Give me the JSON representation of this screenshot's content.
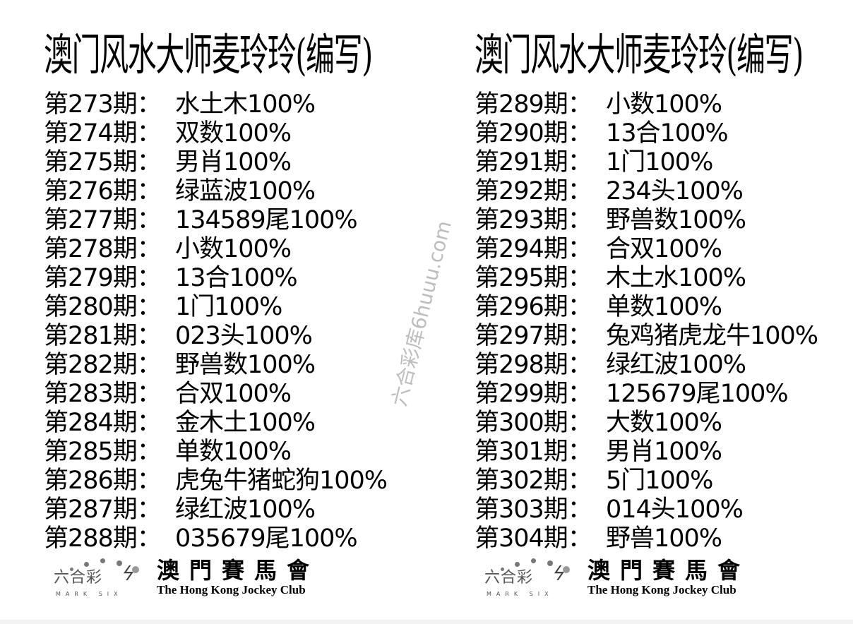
{
  "watermark": "六合彩库6huuu.com",
  "columns": [
    {
      "title": "澳门风水大师麦玲玲(编写)",
      "rows": [
        {
          "label": "第273期：",
          "value": "水土木100%"
        },
        {
          "label": "第274期：",
          "value": "双数100%"
        },
        {
          "label": "第275期：",
          "value": "男肖100%"
        },
        {
          "label": "第276期：",
          "value": "绿蓝波100%"
        },
        {
          "label": "第277期：",
          "value": "134589尾100%"
        },
        {
          "label": "第278期：",
          "value": "小数100%"
        },
        {
          "label": "第279期：",
          "value": "13合100%"
        },
        {
          "label": "第280期：",
          "value": "1门100%"
        },
        {
          "label": "第281期：",
          "value": "023头100%"
        },
        {
          "label": "第282期：",
          "value": "野兽数100%"
        },
        {
          "label": "第283期：",
          "value": "合双100%"
        },
        {
          "label": "第284期：",
          "value": "金木土100%"
        },
        {
          "label": "第285期：",
          "value": "单数100%"
        },
        {
          "label": "第286期：",
          "value": "虎兔牛猪蛇狗100%"
        },
        {
          "label": "第287期：",
          "value": "绿红波100%"
        },
        {
          "label": "第288期：",
          "value": "035679尾100%"
        }
      ],
      "logo": {
        "mark_cn": "六合彩",
        "mark_en": "MARK SIX",
        "club_cn": "澳門賽馬會",
        "club_en": "The Hong Kong Jockey Club"
      }
    },
    {
      "title": "澳门风水大师麦玲玲(编写)",
      "rows": [
        {
          "label": "第289期：",
          "value": "小数100%"
        },
        {
          "label": "第290期：",
          "value": "13合100%"
        },
        {
          "label": "第291期：",
          "value": "1门100%"
        },
        {
          "label": "第292期：",
          "value": "234头100%"
        },
        {
          "label": "第293期：",
          "value": "野兽数100%"
        },
        {
          "label": "第294期：",
          "value": "合双100%"
        },
        {
          "label": "第295期：",
          "value": "木土水100%"
        },
        {
          "label": "第296期：",
          "value": "单数100%"
        },
        {
          "label": "第297期：",
          "value": "兔鸡猪虎龙牛100%"
        },
        {
          "label": "第298期：",
          "value": "绿红波100%"
        },
        {
          "label": "第299期：",
          "value": "125679尾100%"
        },
        {
          "label": "第300期：",
          "value": "大数100%"
        },
        {
          "label": "第301期：",
          "value": "男肖100%"
        },
        {
          "label": "第302期：",
          "value": "5门100%"
        },
        {
          "label": "第303期：",
          "value": "014头100%"
        },
        {
          "label": "第304期：",
          "value": "野兽100%"
        }
      ],
      "logo": {
        "mark_cn": "六合彩",
        "mark_en": "MARK SIX",
        "club_cn": "澳門賽馬會",
        "club_en": "The Hong Kong Jockey Club"
      }
    }
  ]
}
